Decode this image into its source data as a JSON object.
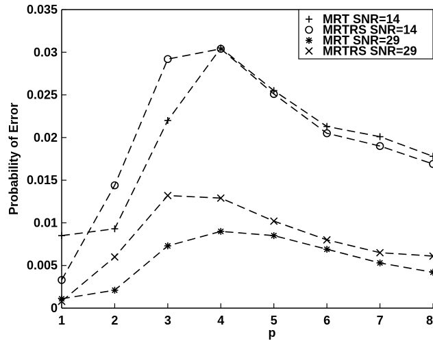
{
  "chart_data": {
    "type": "line",
    "title": "",
    "xlabel": "p",
    "ylabel": "Probability of Error",
    "x": [
      1,
      2,
      3,
      4,
      5,
      6,
      7,
      8
    ],
    "xlim": [
      1,
      8
    ],
    "ylim": [
      0,
      0.035
    ],
    "xticks": [
      1,
      2,
      3,
      4,
      5,
      6,
      7,
      8
    ],
    "xtick_labels": [
      "1",
      "2",
      "3",
      "4",
      "5",
      "6",
      "7",
      "8"
    ],
    "yticks": [
      0,
      0.005,
      0.01,
      0.015,
      0.02,
      0.025,
      0.03,
      0.035
    ],
    "ytick_labels": [
      "0",
      "0.005",
      "0.01",
      "0.015",
      "0.02",
      "0.025",
      "0.03",
      "0.035"
    ],
    "grid": false,
    "legend_position": "top-right",
    "line_style": "dashed",
    "series": [
      {
        "name": "MRT SNR=14",
        "marker": "plus",
        "values": [
          0.0085,
          0.0093,
          0.022,
          0.0305,
          0.0255,
          0.0213,
          0.0201,
          0.0178
        ]
      },
      {
        "name": "MRTRS SNR=14",
        "marker": "circle",
        "values": [
          0.0033,
          0.0144,
          0.0292,
          0.0304,
          0.0251,
          0.0205,
          0.019,
          0.0169
        ]
      },
      {
        "name": "MRT SNR=29",
        "marker": "asterisk",
        "values": [
          0.0011,
          0.0021,
          0.0073,
          0.009,
          0.0085,
          0.0069,
          0.0053,
          0.0042
        ]
      },
      {
        "name": "MRTRS SNR=29",
        "marker": "cross",
        "values": [
          0.0008,
          0.006,
          0.0132,
          0.0129,
          0.0102,
          0.008,
          0.0065,
          0.0061
        ]
      }
    ]
  },
  "colors": {
    "background": "#ffffff",
    "axes": "#000000",
    "lines": "#000000"
  }
}
